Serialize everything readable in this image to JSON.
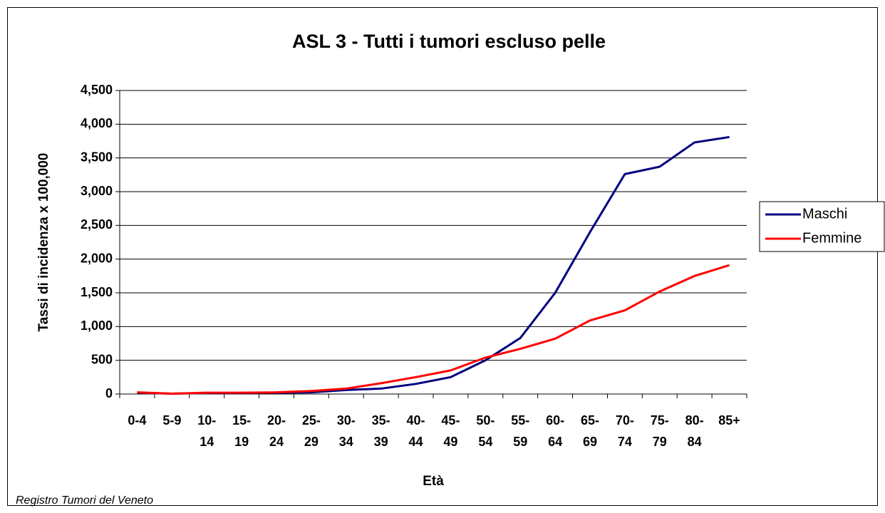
{
  "chart_data": {
    "type": "line",
    "title": "ASL 3 - Tutti i tumori escluso pelle",
    "x_label": "Età",
    "y_label": "Tassi di incidenza x 100,000",
    "source": "Registro Tumori del Veneto",
    "categories": [
      "0-4",
      "5-9",
      "10-14",
      "15-19",
      "20-24",
      "25-29",
      "30-34",
      "35-39",
      "40-44",
      "45-49",
      "50-54",
      "55-59",
      "60-64",
      "65-69",
      "70-74",
      "75-79",
      "80-84",
      "85+"
    ],
    "series": [
      {
        "name": "Maschi",
        "color": "#000080",
        "values": [
          20,
          5,
          15,
          15,
          20,
          25,
          60,
          80,
          150,
          250,
          500,
          830,
          1500,
          2400,
          3260,
          3370,
          3730,
          3810
        ]
      },
      {
        "name": "Femmine",
        "color": "#ff0000",
        "values": [
          25,
          5,
          20,
          20,
          25,
          45,
          80,
          160,
          250,
          350,
          540,
          670,
          820,
          1090,
          1240,
          1520,
          1750,
          1910
        ]
      }
    ],
    "ylim": [
      0,
      4500
    ],
    "yticks": [
      0,
      500,
      {
        "value": 1000,
        "label": "1,000"
      },
      {
        "value": 1500,
        "label": "1,500"
      },
      {
        "value": 2000,
        "label": "2,000"
      },
      {
        "value": 2500,
        "label": "2,500"
      },
      {
        "value": 3000,
        "label": "3,000"
      },
      {
        "value": 3500,
        "label": "3,500"
      },
      {
        "value": 4000,
        "label": "4,000"
      },
      {
        "value": 4500,
        "label": "4,500"
      }
    ],
    "grid": true,
    "legend": "right"
  }
}
